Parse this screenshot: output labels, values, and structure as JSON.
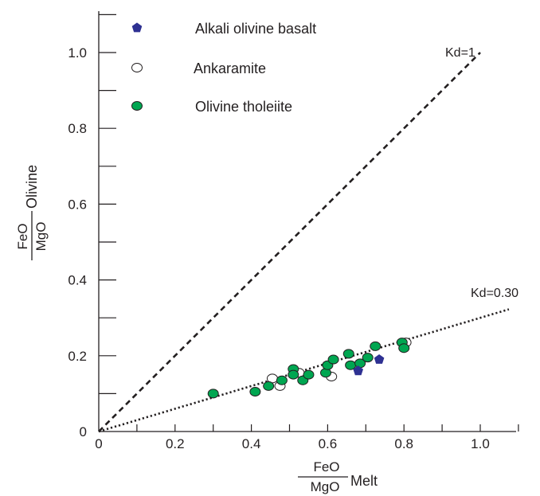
{
  "chart_data": {
    "type": "scatter",
    "xlim": [
      0,
      1.1
    ],
    "ylim": [
      0,
      1.1
    ],
    "x_ticks": [
      "0",
      "0.2",
      "0.4",
      "0.6",
      "0.8",
      "1.0"
    ],
    "y_ticks": [
      "0",
      "0.2",
      "0.4",
      "0.6",
      "0.8",
      "1.0"
    ],
    "xlabel": {
      "fraction_num": "FeO",
      "fraction_den": "MgO",
      "suffix": "Melt"
    },
    "ylabel": {
      "fraction_num": "FeO",
      "fraction_den": "MgO",
      "suffix": "Olivine"
    },
    "grid": false,
    "legend_position": "top-left",
    "lines": [
      {
        "label": "Kd=1",
        "slope": 1.0,
        "style": "dashed",
        "x_range": [
          0,
          1.0
        ]
      },
      {
        "label": "Kd=0.30",
        "slope": 0.3,
        "style": "dotted",
        "x_range": [
          0,
          1.075
        ]
      }
    ],
    "series": [
      {
        "name": "Alkali olivine basalt",
        "marker": "pentagon",
        "color": "#2e3192",
        "points": [
          [
            0.68,
            0.16
          ],
          [
            0.735,
            0.19
          ]
        ]
      },
      {
        "name": "Ankaramite",
        "marker": "circle-open",
        "color": "#ffffff",
        "points": [
          [
            0.455,
            0.14
          ],
          [
            0.475,
            0.12
          ],
          [
            0.525,
            0.155
          ],
          [
            0.61,
            0.145
          ],
          [
            0.805,
            0.235
          ]
        ]
      },
      {
        "name": "Olivine tholeiite",
        "marker": "circle-filled",
        "color": "#00a651",
        "points": [
          [
            0.3,
            0.1
          ],
          [
            0.41,
            0.105
          ],
          [
            0.445,
            0.12
          ],
          [
            0.48,
            0.135
          ],
          [
            0.51,
            0.165
          ],
          [
            0.51,
            0.15
          ],
          [
            0.535,
            0.135
          ],
          [
            0.55,
            0.15
          ],
          [
            0.595,
            0.155
          ],
          [
            0.6,
            0.175
          ],
          [
            0.615,
            0.19
          ],
          [
            0.655,
            0.205
          ],
          [
            0.66,
            0.175
          ],
          [
            0.685,
            0.18
          ],
          [
            0.705,
            0.195
          ],
          [
            0.725,
            0.225
          ],
          [
            0.795,
            0.235
          ],
          [
            0.8,
            0.22
          ]
        ]
      }
    ]
  }
}
